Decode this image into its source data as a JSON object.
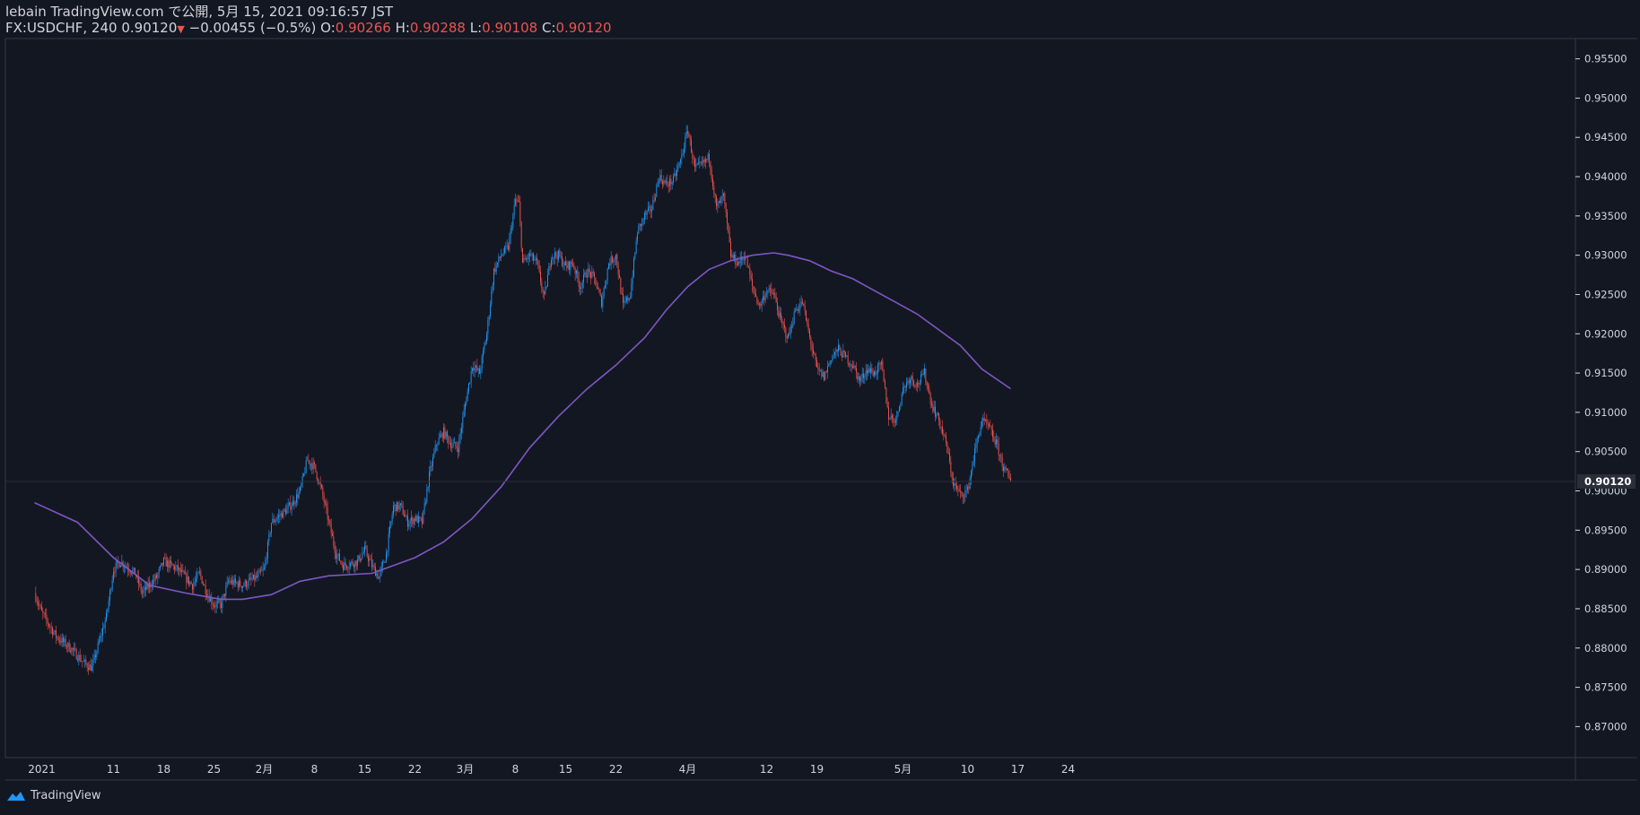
{
  "header": {
    "publish_line": "lebain TradingView.com で公開, 5月 15, 2021 09:16:57 JST",
    "symbol": "FX:USDCHF, 240",
    "last": "0.90120",
    "change": "−0.00455 (−0.5%)",
    "o_label": "O:",
    "o": "0.90266",
    "h_label": "H:",
    "h": "0.90288",
    "l_label": "L:",
    "l": "0.90108",
    "c_label": "C:",
    "c": "0.90120"
  },
  "footer": {
    "brand": "TradingView"
  },
  "colors": {
    "up": "#2196f3",
    "down": "#ef5350",
    "ma": "#7e57c2",
    "bg": "#131722",
    "axis": "#d1d4dc",
    "grid_line": "#363a45"
  },
  "chart_data": {
    "type": "candlestick",
    "title": "FX:USDCHF, 240",
    "grid": false,
    "ylim": [
      0.868,
      0.956
    ],
    "y_ticks": [
      "0.87000",
      "0.87500",
      "0.88000",
      "0.88500",
      "0.89000",
      "0.89500",
      "0.90000",
      "0.90500",
      "0.91000",
      "0.91500",
      "0.92000",
      "0.92500",
      "0.93000",
      "0.93500",
      "0.94000",
      "0.94500",
      "0.95000",
      "0.95500"
    ],
    "x_ticks": [
      {
        "day": 0,
        "label": "2021"
      },
      {
        "day": 10,
        "label": "11"
      },
      {
        "day": 17,
        "label": "18"
      },
      {
        "day": 24,
        "label": "25"
      },
      {
        "day": 31,
        "label": "2月"
      },
      {
        "day": 38,
        "label": "8"
      },
      {
        "day": 45,
        "label": "15"
      },
      {
        "day": 52,
        "label": "22"
      },
      {
        "day": 59,
        "label": "3月"
      },
      {
        "day": 66,
        "label": "8"
      },
      {
        "day": 73,
        "label": "15"
      },
      {
        "day": 80,
        "label": "22"
      },
      {
        "day": 90,
        "label": "4月"
      },
      {
        "day": 101,
        "label": "12"
      },
      {
        "day": 108,
        "label": "19"
      },
      {
        "day": 120,
        "label": "5月"
      },
      {
        "day": 129,
        "label": "10"
      },
      {
        "day": 136,
        "label": "17"
      },
      {
        "day": 143,
        "label": "24"
      }
    ],
    "last_price": 0.9012,
    "last_price_label": "0.90120",
    "price_path": [
      [
        -1,
        0.887
      ],
      [
        0,
        0.8845
      ],
      [
        2,
        0.8815
      ],
      [
        4,
        0.88
      ],
      [
        6,
        0.878
      ],
      [
        7,
        0.8775
      ],
      [
        9,
        0.884
      ],
      [
        10,
        0.89
      ],
      [
        11,
        0.891
      ],
      [
        13,
        0.8895
      ],
      [
        14,
        0.887
      ],
      [
        16,
        0.889
      ],
      [
        17,
        0.891
      ],
      [
        19,
        0.89
      ],
      [
        21,
        0.888
      ],
      [
        22,
        0.8895
      ],
      [
        23,
        0.887
      ],
      [
        24,
        0.8855
      ],
      [
        25,
        0.8855
      ],
      [
        26,
        0.8885
      ],
      [
        28,
        0.888
      ],
      [
        30,
        0.889
      ],
      [
        31,
        0.89
      ],
      [
        32,
        0.896
      ],
      [
        34,
        0.8975
      ],
      [
        35,
        0.8985
      ],
      [
        36,
        0.9
      ],
      [
        37,
        0.904
      ],
      [
        38,
        0.903
      ],
      [
        39,
        0.9
      ],
      [
        40,
        0.896
      ],
      [
        41,
        0.892
      ],
      [
        42,
        0.8905
      ],
      [
        44,
        0.891
      ],
      [
        45,
        0.8925
      ],
      [
        46,
        0.8905
      ],
      [
        47,
        0.889
      ],
      [
        48,
        0.892
      ],
      [
        49,
        0.898
      ],
      [
        50,
        0.898
      ],
      [
        51,
        0.896
      ],
      [
        52,
        0.8965
      ],
      [
        53,
        0.896
      ],
      [
        54,
        0.902
      ],
      [
        55,
        0.906
      ],
      [
        56,
        0.9075
      ],
      [
        57,
        0.906
      ],
      [
        58,
        0.9055
      ],
      [
        59,
        0.911
      ],
      [
        60,
        0.916
      ],
      [
        61,
        0.915
      ],
      [
        62,
        0.92
      ],
      [
        63,
        0.928
      ],
      [
        64,
        0.93
      ],
      [
        65,
        0.931
      ],
      [
        66,
        0.937
      ],
      [
        66.5,
        0.9365
      ],
      [
        67,
        0.929
      ],
      [
        68,
        0.93
      ],
      [
        69,
        0.929
      ],
      [
        70,
        0.9245
      ],
      [
        71,
        0.93
      ],
      [
        72,
        0.93
      ],
      [
        73,
        0.9285
      ],
      [
        74,
        0.929
      ],
      [
        75,
        0.926
      ],
      [
        76,
        0.928
      ],
      [
        77,
        0.927
      ],
      [
        78,
        0.924
      ],
      [
        79,
        0.929
      ],
      [
        80,
        0.93
      ],
      [
        81,
        0.9235
      ],
      [
        82,
        0.925
      ],
      [
        83,
        0.933
      ],
      [
        84,
        0.935
      ],
      [
        85,
        0.936
      ],
      [
        86,
        0.94
      ],
      [
        87,
        0.939
      ],
      [
        88,
        0.9395
      ],
      [
        89,
        0.942
      ],
      [
        90,
        0.946
      ],
      [
        91,
        0.941
      ],
      [
        92,
        0.9415
      ],
      [
        93,
        0.9425
      ],
      [
        94,
        0.936
      ],
      [
        95,
        0.9375
      ],
      [
        96,
        0.93
      ],
      [
        97,
        0.929
      ],
      [
        98,
        0.93
      ],
      [
        99,
        0.926
      ],
      [
        100,
        0.9235
      ],
      [
        101,
        0.9255
      ],
      [
        102,
        0.925
      ],
      [
        103,
        0.9215
      ],
      [
        104,
        0.9195
      ],
      [
        105,
        0.923
      ],
      [
        106,
        0.924
      ],
      [
        107,
        0.9195
      ],
      [
        108,
        0.9155
      ],
      [
        109,
        0.9145
      ],
      [
        110,
        0.917
      ],
      [
        111,
        0.918
      ],
      [
        112,
        0.917
      ],
      [
        113,
        0.916
      ],
      [
        114,
        0.914
      ],
      [
        115,
        0.9155
      ],
      [
        116,
        0.915
      ],
      [
        117,
        0.916
      ],
      [
        118,
        0.9095
      ],
      [
        119,
        0.909
      ],
      [
        120,
        0.913
      ],
      [
        121,
        0.9145
      ],
      [
        122,
        0.9135
      ],
      [
        123,
        0.915
      ],
      [
        124,
        0.911
      ],
      [
        125,
        0.909
      ],
      [
        126,
        0.906
      ],
      [
        127,
        0.901
      ],
      [
        128,
        0.8995
      ],
      [
        129,
        0.9
      ],
      [
        130,
        0.905
      ],
      [
        131,
        0.909
      ],
      [
        132,
        0.908
      ],
      [
        133,
        0.906
      ],
      [
        134,
        0.903
      ],
      [
        135,
        0.9012
      ]
    ],
    "moving_average": [
      [
        -1,
        0.8985
      ],
      [
        5,
        0.896
      ],
      [
        10,
        0.8915
      ],
      [
        15,
        0.888
      ],
      [
        20,
        0.887
      ],
      [
        25,
        0.8862
      ],
      [
        28,
        0.8862
      ],
      [
        32,
        0.8868
      ],
      [
        36,
        0.8885
      ],
      [
        40,
        0.8892
      ],
      [
        46,
        0.8895
      ],
      [
        52,
        0.8915
      ],
      [
        56,
        0.8935
      ],
      [
        60,
        0.8965
      ],
      [
        64,
        0.9005
      ],
      [
        68,
        0.9055
      ],
      [
        72,
        0.9095
      ],
      [
        76,
        0.913
      ],
      [
        80,
        0.916
      ],
      [
        84,
        0.9195
      ],
      [
        87,
        0.923
      ],
      [
        90,
        0.926
      ],
      [
        93,
        0.9282
      ],
      [
        96,
        0.9293
      ],
      [
        99,
        0.93
      ],
      [
        102,
        0.9303
      ],
      [
        104,
        0.93
      ],
      [
        107,
        0.9293
      ],
      [
        110,
        0.928
      ],
      [
        113,
        0.927
      ],
      [
        116,
        0.9255
      ],
      [
        119,
        0.924
      ],
      [
        122,
        0.9225
      ],
      [
        125,
        0.9205
      ],
      [
        128,
        0.9185
      ],
      [
        131,
        0.9155
      ],
      [
        135,
        0.913
      ]
    ],
    "candles_per_day": 6
  }
}
